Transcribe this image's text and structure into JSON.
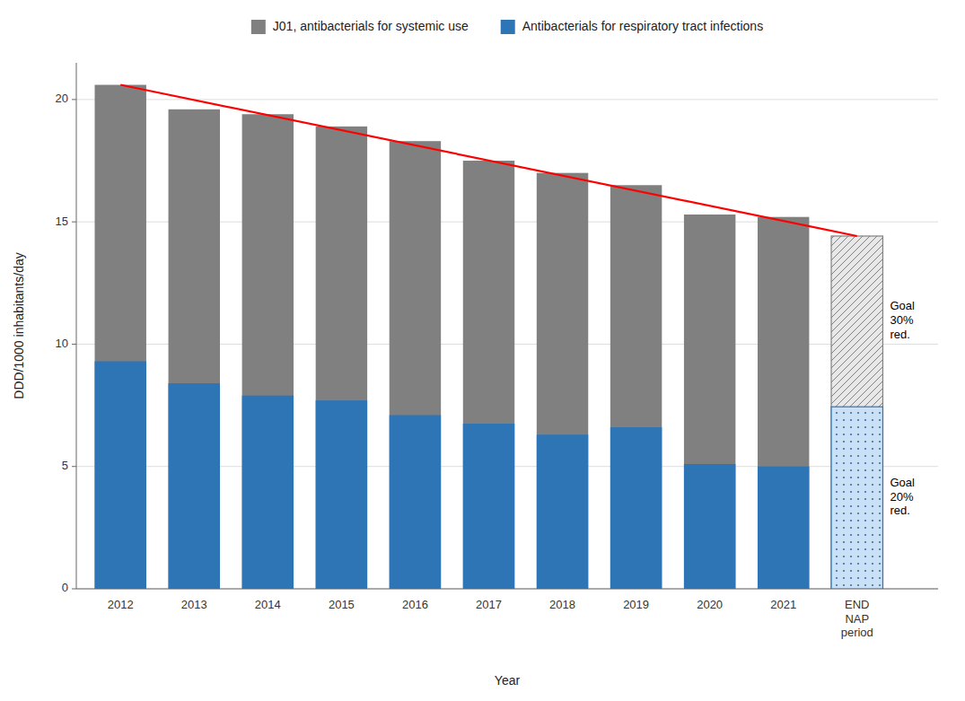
{
  "chart_data": {
    "type": "bar",
    "categories": [
      "2012",
      "2013",
      "2014",
      "2015",
      "2016",
      "2017",
      "2018",
      "2019",
      "2020",
      "2021",
      "END\nNAP\nperiod"
    ],
    "series": [
      {
        "name": "J01, antibacterials for systemic use",
        "color": "#808080",
        "colors": [
          "#808080",
          "#808080",
          "#808080",
          "#808080",
          "#808080",
          "#808080",
          "#808080",
          "#808080",
          "#808080",
          "#808080",
          "#e8e8e8"
        ],
        "values": [
          20.6,
          19.6,
          19.4,
          18.9,
          18.3,
          17.5,
          17.0,
          16.5,
          15.3,
          15.2,
          14.42
        ]
      },
      {
        "name": "Antibacterials for respiratory tract infections",
        "color": "#2E75B6",
        "colors": [
          "#2E75B6",
          "#2E75B6",
          "#2E75B6",
          "#2E75B6",
          "#2E75B6",
          "#2E75B6",
          "#2E75B6",
          "#2E75B6",
          "#2E75B6",
          "#2E75B6",
          "#cce0f5"
        ],
        "values": [
          9.3,
          8.4,
          7.9,
          7.7,
          7.1,
          6.75,
          6.3,
          6.6,
          5.1,
          5.0,
          7.44
        ]
      },
      {
        "type": "line",
        "color": "red",
        "x": [
          "2012",
          "END\nNAP\nperiod"
        ],
        "values": [
          20.6,
          14.42
        ]
      }
    ],
    "annotations": [
      {
        "text": "Goal\n30%\nred."
      },
      {
        "text": "Goal\n20%\nred."
      }
    ],
    "xlabel": "Year",
    "ylabel": "DDD/1000 inhabitants/day",
    "ylim": [
      0,
      21.5
    ],
    "yticks": [
      0,
      5,
      10,
      15,
      20
    ],
    "grid": true,
    "legend": "top"
  }
}
